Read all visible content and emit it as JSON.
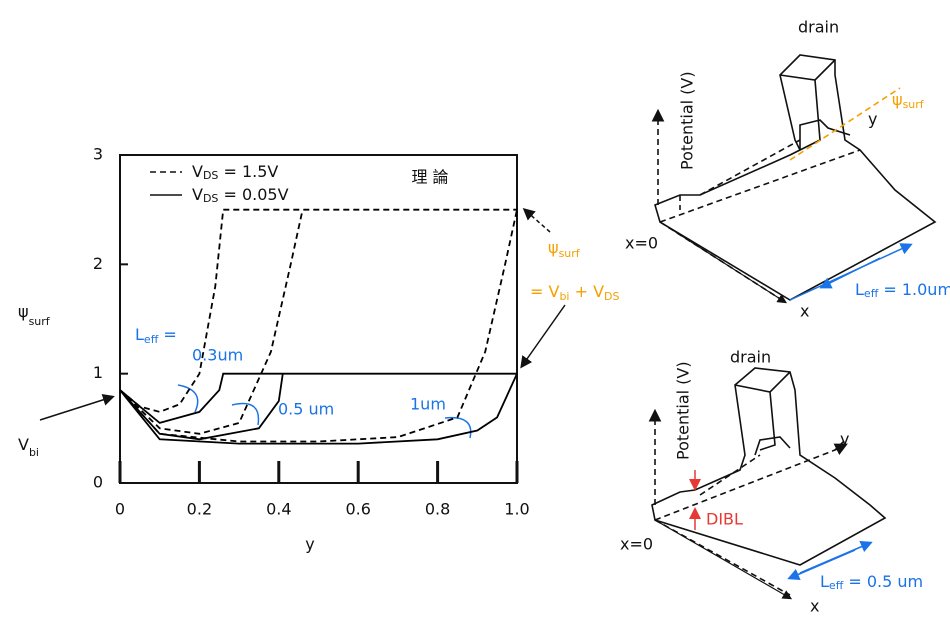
{
  "chart_data": {
    "type": "line",
    "title": "理 論",
    "xlabel": "y",
    "ylabel": {
      "main": "ψ",
      "sub": "surf"
    },
    "xlim": [
      0,
      1
    ],
    "ylim": [
      0,
      3
    ],
    "xticks": [
      0,
      0.2,
      0.4,
      0.6,
      0.8,
      {
        "value": 1,
        "label": "1.0"
      }
    ],
    "yticks": [
      0,
      1,
      2,
      3
    ],
    "series": [
      {
        "name": {
          "main": "V",
          "sub": "DS",
          "rest": " = 1.5V"
        },
        "color": "#000000",
        "dashed": true,
        "curves": [
          {
            "x": [
              0,
              0.05,
              0.1,
              0.15,
              0.2,
              0.24,
              0.26,
              1.0
            ],
            "values": [
              0.85,
              0.7,
              0.65,
              0.72,
              1.0,
              1.8,
              2.5,
              2.5
            ]
          },
          {
            "x": [
              0,
              0.1,
              0.2,
              0.3,
              0.38,
              0.43,
              0.46
            ],
            "values": [
              0.85,
              0.5,
              0.45,
              0.55,
              1.2,
              2.0,
              2.5
            ]
          },
          {
            "x": [
              0,
              0.1,
              0.3,
              0.5,
              0.7,
              0.85,
              0.92,
              0.97,
              1.0
            ],
            "values": [
              0.85,
              0.45,
              0.38,
              0.38,
              0.42,
              0.6,
              1.2,
              2.0,
              2.5
            ]
          }
        ]
      },
      {
        "name": {
          "main": "V",
          "sub": "DS",
          "rest": " = 0.05V"
        },
        "color": "#000000",
        "dashed": false,
        "curves": [
          {
            "x": [
              0,
              0.1,
              0.2,
              0.25,
              0.26,
              1.0
            ],
            "values": [
              0.85,
              0.55,
              0.65,
              0.85,
              1.0,
              1.0
            ]
          },
          {
            "x": [
              0,
              0.1,
              0.2,
              0.35,
              0.4,
              0.41
            ],
            "values": [
              0.85,
              0.45,
              0.4,
              0.5,
              0.75,
              1.0
            ]
          },
          {
            "x": [
              0,
              0.1,
              0.3,
              0.6,
              0.8,
              0.9,
              0.95,
              1.0
            ],
            "values": [
              0.85,
              0.4,
              0.36,
              0.36,
              0.4,
              0.48,
              0.6,
              1.0
            ]
          }
        ]
      }
    ],
    "curve_labels": {
      "leff": {
        "main": "L",
        "sub": "eff",
        "rest": " ="
      },
      "l1": "0.3um",
      "l2": "0.5 um",
      "l3": "1um"
    },
    "annotations": {
      "vbi": {
        "main": "V",
        "sub": "bi"
      },
      "psi": {
        "main": "ψ",
        "sub": "surf"
      },
      "eq": {
        "a": "= V",
        "b": "bi",
        "c": " + V",
        "d": "DS"
      }
    }
  },
  "diagrams": [
    {
      "drain": "drain",
      "potential": "Potential (V)",
      "y": "y",
      "x": "x",
      "x0": "x=0",
      "psi": {
        "main": "ψ",
        "sub": "surf"
      },
      "leff": {
        "main": "L",
        "sub": "eff",
        "rest": " = 1.0um"
      }
    },
    {
      "drain": "drain",
      "potential": "Potential (V)",
      "y": "y",
      "x": "x",
      "x0": "x=0",
      "dibl": "DIBL",
      "leff": {
        "main": "L",
        "sub": "eff",
        "rest": " = 0.5 um"
      }
    }
  ]
}
